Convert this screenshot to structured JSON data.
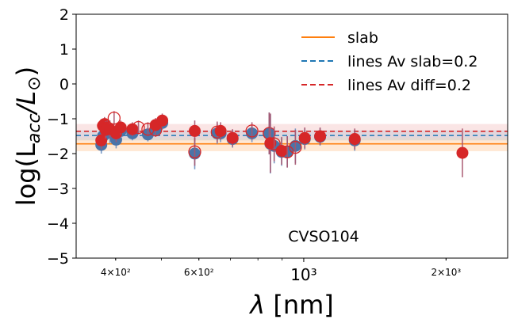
{
  "chart_data": {
    "type": "scatter",
    "title": "",
    "xlabel": "λ [nm]",
    "ylabel": "log(L_acc/L⊙)",
    "xscale": "log",
    "xlim": [
      330,
      2700
    ],
    "ylim": [
      -5,
      2
    ],
    "x_ticks": [
      {
        "value": 400,
        "label": "4×10²",
        "size": "minor"
      },
      {
        "value": 600,
        "label": "6×10²",
        "size": "minor"
      },
      {
        "value": 1000,
        "label": "10³",
        "size": "major"
      },
      {
        "value": 2000,
        "label": "2×10³",
        "size": "minor"
      }
    ],
    "y_ticks": [
      2,
      1,
      0,
      -1,
      -2,
      -3,
      -4,
      -5
    ],
    "annotation": "CVSO104",
    "legend": {
      "position": "top-right",
      "entries": [
        {
          "label": "slab",
          "color": "#ff7f0e",
          "style": "solid"
        },
        {
          "label": "lines Av slab=0.2",
          "color": "#1f77b4",
          "style": "dashed"
        },
        {
          "label": "lines Av diff=0.2",
          "color": "#d62728",
          "style": "dashed"
        }
      ]
    },
    "reference_lines": [
      {
        "name": "slab",
        "y": -1.72,
        "band": [
          -1.93,
          -1.55
        ],
        "color": "#ff7f0e",
        "style": "solid"
      },
      {
        "name": "lines Av slab=0.2",
        "y": -1.48,
        "band": [
          -1.62,
          -1.33
        ],
        "color": "#1f77b4",
        "style": "dashed"
      },
      {
        "name": "lines Av diff=0.2",
        "y": -1.36,
        "band": [
          -1.55,
          -1.15
        ],
        "color": "#d62728",
        "style": "dashed"
      }
    ],
    "series": [
      {
        "name": "lines Av slab=0.2",
        "color": "#4a74a8",
        "marker": "filled",
        "points": [
          {
            "x": 373,
            "y": -1.75,
            "err": 0.25
          },
          {
            "x": 376,
            "y": -1.5,
            "err": 0.25
          },
          {
            "x": 379,
            "y": -1.45,
            "err": 0.2
          },
          {
            "x": 381,
            "y": -1.35,
            "err": 0.25
          },
          {
            "x": 384,
            "y": -1.3,
            "err": 0.25
          },
          {
            "x": 389,
            "y": -1.4,
            "err": 0.3
          },
          {
            "x": 397,
            "y": -1.42,
            "err": 0.2
          },
          {
            "x": 401,
            "y": -1.6,
            "err": 0.25
          },
          {
            "x": 410,
            "y": -1.35,
            "err": 0.2
          },
          {
            "x": 434,
            "y": -1.42,
            "err": 0.2
          },
          {
            "x": 468,
            "y": -1.45,
            "err": 0.2
          },
          {
            "x": 486,
            "y": -1.3,
            "err": 0.2
          },
          {
            "x": 502,
            "y": -1.12,
            "err": 0.2
          },
          {
            "x": 588,
            "y": -2.0,
            "err": 0.45
          },
          {
            "x": 656,
            "y": -1.42,
            "err": 0.3
          },
          {
            "x": 667,
            "y": -1.42,
            "err": 0.25
          },
          {
            "x": 707,
            "y": -1.58,
            "err": 0.25
          },
          {
            "x": 777,
            "y": -1.42,
            "err": 0.25
          },
          {
            "x": 845,
            "y": -1.42,
            "err": 0.6
          },
          {
            "x": 850,
            "y": -1.72,
            "err": 0.85
          },
          {
            "x": 866,
            "y": -1.78,
            "err": 0.5
          },
          {
            "x": 898,
            "y": -1.95,
            "err": 0.4
          },
          {
            "x": 923,
            "y": -1.95,
            "err": 0.45
          },
          {
            "x": 960,
            "y": -1.78,
            "err": 0.5
          },
          {
            "x": 1005,
            "y": -1.58,
            "err": 0.3
          },
          {
            "x": 1083,
            "y": -1.52,
            "err": 0.25
          },
          {
            "x": 1282,
            "y": -1.62,
            "err": 0.3
          }
        ]
      },
      {
        "name": "lines Av diff=0.2",
        "color": "#d62728",
        "points": [
          {
            "x": 373,
            "y": -1.62,
            "err": 0.25,
            "open": false
          },
          {
            "x": 376,
            "y": -1.2,
            "err": 0.2,
            "open": false
          },
          {
            "x": 379,
            "y": -1.15,
            "err": 0.2,
            "open": false
          },
          {
            "x": 381,
            "y": -1.32,
            "err": 0.25,
            "open": false
          },
          {
            "x": 384,
            "y": -1.25,
            "err": 0.2,
            "open": false
          },
          {
            "x": 389,
            "y": -1.3,
            "err": 0.25,
            "open": false
          },
          {
            "x": 397,
            "y": -0.98,
            "err": 0.2,
            "open": true
          },
          {
            "x": 401,
            "y": -1.42,
            "err": 0.25,
            "open": false
          },
          {
            "x": 410,
            "y": -1.25,
            "err": 0.2,
            "open": false
          },
          {
            "x": 434,
            "y": -1.3,
            "err": 0.2,
            "open": false
          },
          {
            "x": 447,
            "y": -1.25,
            "err": 0.2,
            "open": true
          },
          {
            "x": 468,
            "y": -1.3,
            "err": 0.2,
            "open": true
          },
          {
            "x": 486,
            "y": -1.32,
            "err": 0.2,
            "open": true
          },
          {
            "x": 486,
            "y": -1.18,
            "err": 0.2,
            "open": false
          },
          {
            "x": 502,
            "y": -1.05,
            "err": 0.2,
            "open": false
          },
          {
            "x": 588,
            "y": -1.35,
            "err": 0.3,
            "open": false
          },
          {
            "x": 588,
            "y": -1.95,
            "err": 0.4,
            "open": true
          },
          {
            "x": 656,
            "y": -1.38,
            "err": 0.3,
            "open": true
          },
          {
            "x": 667,
            "y": -1.35,
            "err": 0.25,
            "open": false
          },
          {
            "x": 707,
            "y": -1.55,
            "err": 0.25,
            "open": false
          },
          {
            "x": 777,
            "y": -1.35,
            "err": 0.25,
            "open": true
          },
          {
            "x": 845,
            "y": -1.42,
            "err": 0.6,
            "open": true
          },
          {
            "x": 850,
            "y": -1.7,
            "err": 0.85,
            "open": false
          },
          {
            "x": 866,
            "y": -1.72,
            "err": 0.5,
            "open": true
          },
          {
            "x": 898,
            "y": -1.92,
            "err": 0.4,
            "open": false
          },
          {
            "x": 923,
            "y": -1.95,
            "err": 0.45,
            "open": true
          },
          {
            "x": 960,
            "y": -1.82,
            "err": 0.5,
            "open": true
          },
          {
            "x": 1005,
            "y": -1.55,
            "err": 0.3,
            "open": false
          },
          {
            "x": 1083,
            "y": -1.5,
            "err": 0.25,
            "open": false
          },
          {
            "x": 1282,
            "y": -1.58,
            "err": 0.3,
            "open": false
          },
          {
            "x": 2166,
            "y": -1.98,
            "err": 0.7,
            "open": false
          }
        ]
      }
    ]
  }
}
